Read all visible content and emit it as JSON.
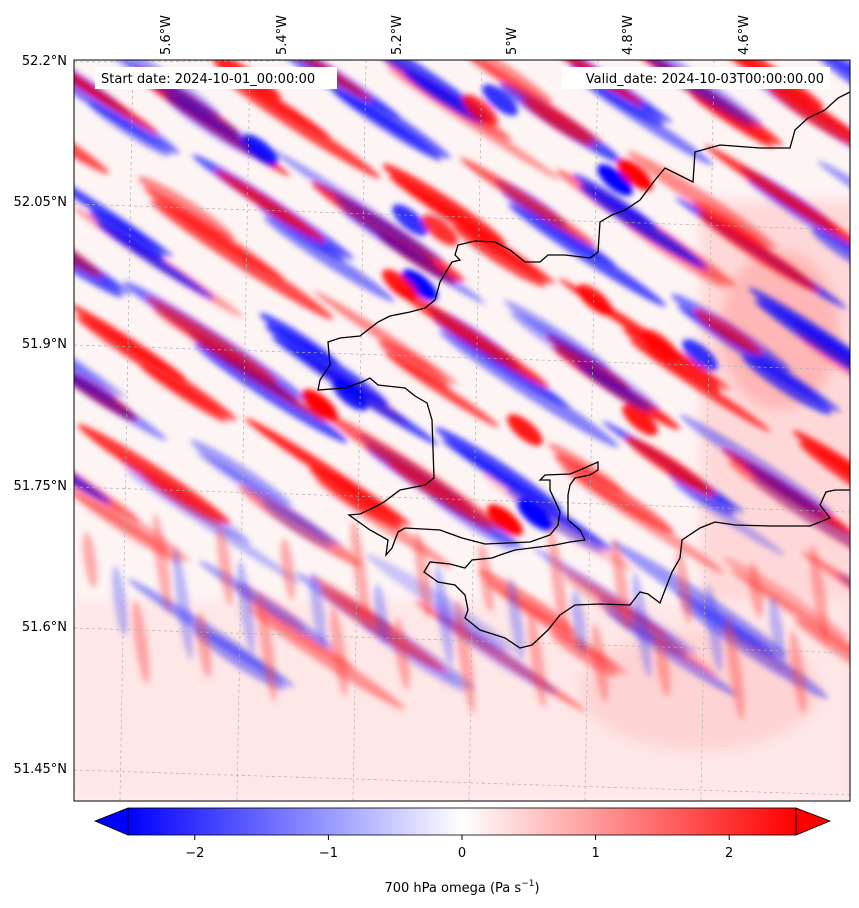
{
  "map": {
    "start_label": "Start date: 2024-10-01_00:00:00",
    "valid_label": "Valid_date: 2024-10-03T00:00:00.00",
    "lon_labels": [
      "5.6°W",
      "5.4°W",
      "5.2°W",
      "5°W",
      "4.8°W",
      "4.6°W"
    ],
    "lat_labels": [
      "52.2°N",
      "52.05°N",
      "51.9°N",
      "51.75°N",
      "51.6°N",
      "51.45°N"
    ],
    "field": "700 hPa omega",
    "units": "Pa s",
    "units_exp": "−1"
  },
  "colorbar": {
    "ticks": [
      "−2",
      "−1",
      "0",
      "1",
      "2"
    ],
    "tick_values": [
      -2,
      -1,
      0,
      1,
      2
    ],
    "range": [
      -2.5,
      2.5
    ],
    "colormap": [
      "#0000ff",
      "#ffffff",
      "#ff0000"
    ],
    "extend": "both"
  },
  "colors": {
    "coastline": "#000000",
    "gridline": "#b0b0b0",
    "strong_descent": "#ff0000",
    "strong_ascent": "#0000ff"
  }
}
